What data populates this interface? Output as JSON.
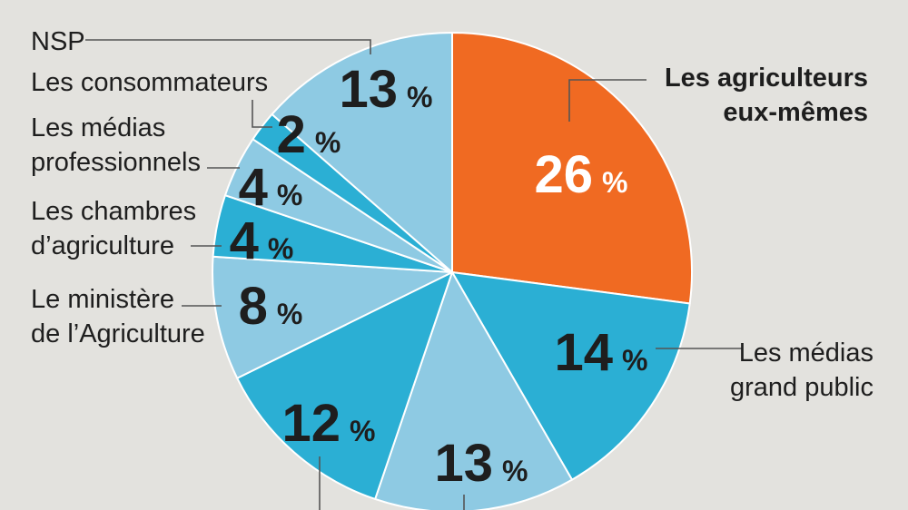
{
  "chart_data": {
    "type": "pie",
    "unit": "%",
    "slices": [
      {
        "label": "Les agriculteurs eux-mêmes",
        "lines": [
          "Les agriculteurs",
          "eux-mêmes"
        ],
        "value": 26,
        "color": "#f06a22",
        "text_color": "#ffffff",
        "highlight": true
      },
      {
        "label": "Les médias grand public",
        "lines": [
          "Les médias",
          "grand public"
        ],
        "value": 14,
        "color": "#2bafd4",
        "text_color": "#1e1e1e"
      },
      {
        "label": "",
        "lines": [],
        "value": 13,
        "color": "#8ecae3",
        "text_color": "#1e1e1e"
      },
      {
        "label": "",
        "lines": [],
        "value": 12,
        "color": "#2bafd4",
        "text_color": "#1e1e1e"
      },
      {
        "label": "Le ministère de l’Agriculture",
        "lines": [
          "Le ministère",
          "de l’Agriculture"
        ],
        "value": 8,
        "color": "#8ecae3",
        "text_color": "#1e1e1e"
      },
      {
        "label": "Les chambres d’agriculture",
        "lines": [
          "Les chambres",
          "d’agriculture"
        ],
        "value": 4,
        "color": "#2bafd4",
        "text_color": "#1e1e1e"
      },
      {
        "label": "Les médias professionnels",
        "lines": [
          "Les médias",
          "professionnels"
        ],
        "value": 4,
        "color": "#8ecae3",
        "text_color": "#1e1e1e"
      },
      {
        "label": "Les consommateurs",
        "lines": [
          "Les consommateurs"
        ],
        "value": 2,
        "color": "#2bafd4",
        "text_color": "#1e1e1e"
      },
      {
        "label": "NSP",
        "lines": [
          "NSP"
        ],
        "value": 13,
        "color": "#8ecae3",
        "text_color": "#1e1e1e"
      }
    ],
    "start": "12 o'clock",
    "direction": "clockwise",
    "legend": "none"
  }
}
